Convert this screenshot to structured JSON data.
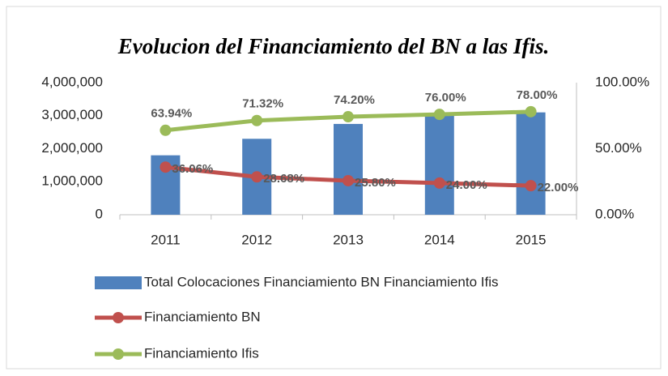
{
  "chart_data": {
    "type": "bar_line",
    "title": "Evolucion del Financiamiento del BN a las Ifis.",
    "categories": [
      "2011",
      "2012",
      "2013",
      "2014",
      "2015"
    ],
    "series": [
      {
        "name": "Total Colocaciones Financiamiento BN Financiamiento Ifis",
        "type": "bar",
        "color": "#4f81bd",
        "values": [
          1800000,
          2300000,
          2750000,
          3050000,
          3100000
        ]
      },
      {
        "name": "Financiamiento BN",
        "type": "line",
        "axis": "y2",
        "color": "#c0504d",
        "values": [
          36.06,
          28.68,
          25.8,
          24.0,
          22.0
        ],
        "value_labels": [
          "36.06%",
          "28.68%",
          "25.80%",
          "24.00%",
          "22.00%"
        ]
      },
      {
        "name": "Financiamiento Ifis",
        "type": "line",
        "axis": "y2",
        "color": "#9bbb59",
        "values": [
          63.94,
          71.32,
          74.2,
          76.0,
          78.0
        ],
        "value_labels": [
          "63.94%",
          "71.32%",
          "74.20%",
          "76.00%",
          "78.00%"
        ]
      }
    ],
    "ylim": [
      0,
      4000000
    ],
    "yticks": [
      0,
      {
        "value": 1000000,
        "label": "1,000,000"
      },
      {
        "value": 2000000,
        "label": "2,000,000"
      },
      {
        "value": 3000000,
        "label": "3,000,000"
      },
      {
        "value": 4000000,
        "label": "4,000,000"
      }
    ],
    "y2lim": [
      0,
      100
    ],
    "y2ticks": [
      {
        "value": 0,
        "label": "0.00%"
      },
      {
        "value": 50,
        "label": "50.00%"
      },
      {
        "value": 100,
        "label": "100.00%"
      }
    ],
    "legend": "bottom"
  }
}
